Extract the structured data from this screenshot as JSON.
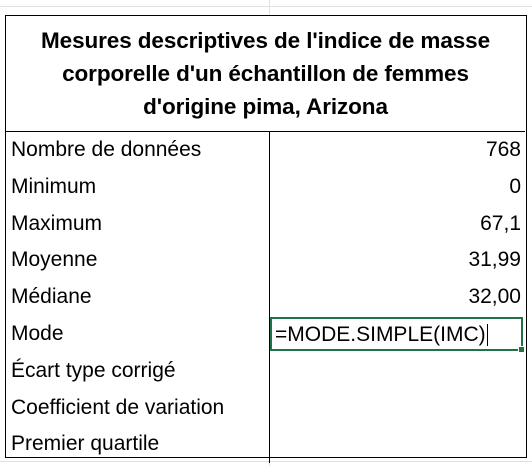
{
  "sheet": {
    "title": "Mesures descriptives de l'indice de masse corporelle d'un échantillon de femmes d'origine pima, Arizona",
    "rows": [
      {
        "label": "Nombre de données",
        "value": "768"
      },
      {
        "label": "Minimum",
        "value": "0"
      },
      {
        "label": "Maximum",
        "value": "67,1"
      },
      {
        "label": "Moyenne",
        "value": "31,99"
      },
      {
        "label": "Médiane",
        "value": "32,00"
      },
      {
        "label": "Mode",
        "value": "=MODE.SIMPLE(IMC)"
      },
      {
        "label": "Écart type corrigé",
        "value": ""
      },
      {
        "label": "Coefficient de variation",
        "value": ""
      },
      {
        "label": "Premier quartile",
        "value": ""
      }
    ]
  },
  "colors": {
    "active_cell_border": "#217346",
    "table_border": "#000000",
    "gridline": "#e1e1e1"
  }
}
